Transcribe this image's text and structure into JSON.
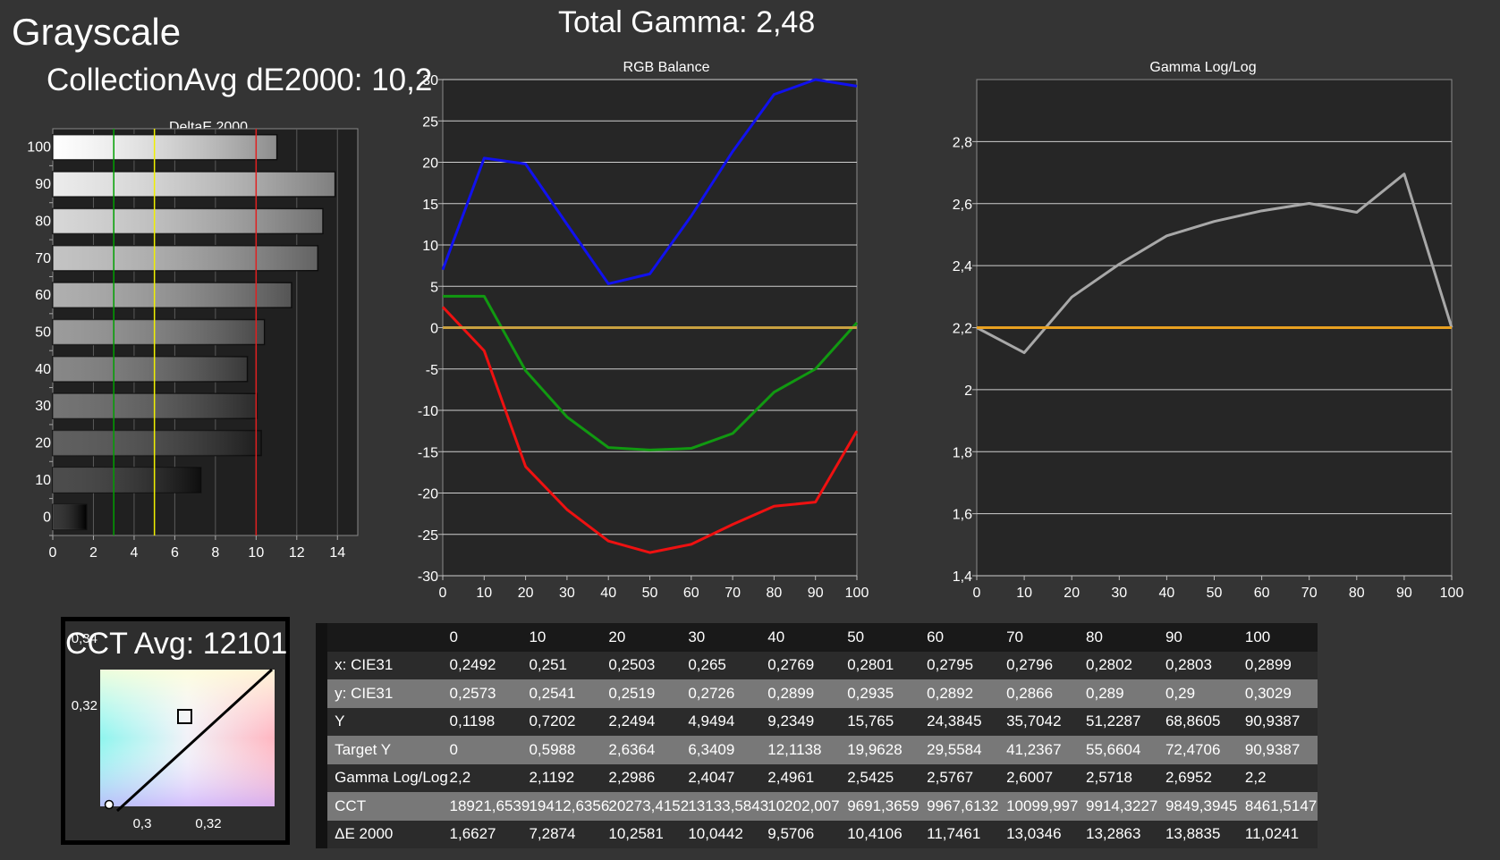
{
  "header": {
    "title": "Grayscale",
    "total_gamma": "Total Gamma: 2,48",
    "collection_avg": "CollectionAvg dE2000: 10,2"
  },
  "cct_panel": {
    "title": "CCT Avg: 12101",
    "x_ticks": [
      "0,3",
      "0,32"
    ],
    "y_ticks": [
      "0,34",
      "0,32"
    ]
  },
  "chart_data": [
    {
      "type": "bar",
      "orientation": "horizontal",
      "title": "DeltaE 2000",
      "categories": [
        "0",
        "10",
        "20",
        "30",
        "40",
        "50",
        "60",
        "70",
        "80",
        "90",
        "100"
      ],
      "values": [
        1.6627,
        7.2874,
        10.2581,
        10.0442,
        9.5706,
        10.4106,
        11.7461,
        13.0346,
        13.2863,
        13.8835,
        11.0241
      ],
      "xlim": [
        0,
        15
      ],
      "x_ticks": [
        "0",
        "2",
        "4",
        "6",
        "8",
        "10",
        "12",
        "14"
      ],
      "reference_lines": [
        {
          "value": 3,
          "color": "#00a000"
        },
        {
          "value": 5,
          "color": "#f0f000"
        },
        {
          "value": 10,
          "color": "#e02020"
        }
      ]
    },
    {
      "type": "line",
      "title": "RGB Balance",
      "x": [
        0,
        10,
        20,
        30,
        40,
        50,
        60,
        70,
        80,
        90,
        100
      ],
      "series": [
        {
          "color": "#ee1111",
          "values": [
            2.5,
            -2.8,
            -16.8,
            -22,
            -25.8,
            -27.2,
            -26.2,
            -23.8,
            -21.6,
            -21.1,
            -12.5
          ]
        },
        {
          "color": "#119911",
          "values": [
            3.8,
            3.8,
            -5.2,
            -10.8,
            -14.5,
            -14.8,
            -14.6,
            -12.8,
            -7.8,
            -5,
            0.6
          ]
        },
        {
          "color": "#1111ee",
          "values": [
            7,
            20.5,
            19.8,
            12.5,
            5.3,
            6.5,
            13.5,
            21.3,
            28.2,
            30,
            29.2
          ]
        },
        {
          "color": "#c8a040",
          "values": [
            0,
            0,
            0,
            0,
            0,
            0,
            0,
            0,
            0,
            0,
            0
          ]
        }
      ],
      "ylim": [
        -30,
        30
      ],
      "y_ticks": [
        "30",
        "25",
        "20",
        "15",
        "10",
        "5",
        "0",
        "-5",
        "-10",
        "-15",
        "-20",
        "-25",
        "-30"
      ],
      "x_ticks": [
        "0",
        "10",
        "20",
        "30",
        "40",
        "50",
        "60",
        "70",
        "80",
        "90",
        "100"
      ],
      "grid": true
    },
    {
      "type": "line",
      "title": "Gamma Log/Log",
      "x": [
        0,
        10,
        20,
        30,
        40,
        50,
        60,
        70,
        80,
        90,
        100
      ],
      "series": [
        {
          "color": "#a8a8a8",
          "values": [
            2.2,
            2.1192,
            2.2986,
            2.4047,
            2.4961,
            2.5425,
            2.5767,
            2.6007,
            2.5718,
            2.6952,
            2.2
          ]
        },
        {
          "color": "#e8a020",
          "values": [
            2.2,
            2.2,
            2.2,
            2.2,
            2.2,
            2.2,
            2.2,
            2.2,
            2.2,
            2.2,
            2.2
          ]
        }
      ],
      "ylim": [
        1.4,
        3.0
      ],
      "y_ticks": [
        "2,8",
        "2,6",
        "2,4",
        "2,2",
        "2",
        "1,8",
        "1,6",
        "1,4"
      ],
      "x_ticks": [
        "0",
        "10",
        "20",
        "30",
        "40",
        "50",
        "60",
        "70",
        "80",
        "90",
        "100"
      ],
      "grid": true
    }
  ],
  "table": {
    "columns": [
      "0",
      "10",
      "20",
      "30",
      "40",
      "50",
      "60",
      "70",
      "80",
      "90",
      "100"
    ],
    "rows": [
      {
        "label": "x: CIE31",
        "values": [
          "0,2492",
          "0,251",
          "0,2503",
          "0,265",
          "0,2769",
          "0,2801",
          "0,2795",
          "0,2796",
          "0,2802",
          "0,2803",
          "0,2899"
        ]
      },
      {
        "label": "y: CIE31",
        "values": [
          "0,2573",
          "0,2541",
          "0,2519",
          "0,2726",
          "0,2899",
          "0,2935",
          "0,2892",
          "0,2866",
          "0,289",
          "0,29",
          "0,3029"
        ]
      },
      {
        "label": "Y",
        "values": [
          "0,1198",
          "0,7202",
          "2,2494",
          "4,9494",
          "9,2349",
          "15,765",
          "24,3845",
          "35,7042",
          "51,2287",
          "68,8605",
          "90,9387"
        ]
      },
      {
        "label": "Target Y",
        "values": [
          "0",
          "0,5988",
          "2,6364",
          "6,3409",
          "12,1138",
          "19,9628",
          "29,5584",
          "41,2367",
          "55,6604",
          "72,4706",
          "90,9387"
        ]
      },
      {
        "label": "Gamma Log/Log",
        "values": [
          "2,2",
          "2,1192",
          "2,2986",
          "2,4047",
          "2,4961",
          "2,5425",
          "2,5767",
          "2,6007",
          "2,5718",
          "2,6952",
          "2,2"
        ]
      },
      {
        "label": "CCT",
        "values": [
          "18921,6539",
          "19412,6356",
          "20273,4152",
          "13133,5843",
          "10202,007",
          "9691,3659",
          "9967,6132",
          "10099,997",
          "9914,3227",
          "9849,3945",
          "8461,5147"
        ]
      },
      {
        "label": "ΔE 2000",
        "values": [
          "1,6627",
          "7,2874",
          "10,2581",
          "10,0442",
          "9,5706",
          "10,4106",
          "11,7461",
          "13,0346",
          "13,2863",
          "13,8835",
          "11,0241"
        ]
      }
    ]
  }
}
